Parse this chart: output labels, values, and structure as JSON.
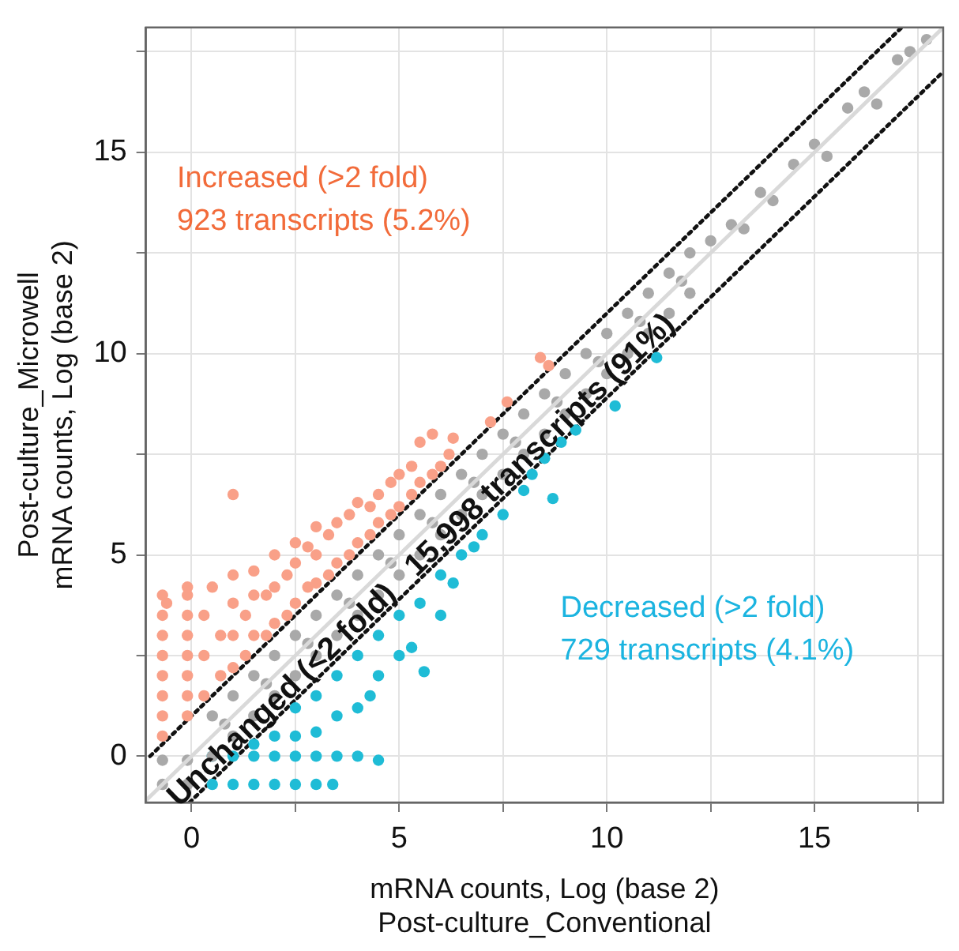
{
  "chart_data": {
    "type": "scatter",
    "xlabel": "mRNA counts, Log (base 2)\nPost-culture_Conventional",
    "ylabel": "Post-culture_Microwell\nmRNA counts, Log (base 2)",
    "xlim": [
      -1.1,
      18.1
    ],
    "ylim": [
      -1.15,
      18.1
    ],
    "xticks": [
      0,
      {
        "value": 2.5,
        "label": null
      },
      5,
      {
        "value": 7.5,
        "label": null
      },
      10,
      {
        "value": 12.5,
        "label": null
      },
      15,
      {
        "value": 17.5,
        "label": null
      }
    ],
    "yticks": [
      0,
      {
        "value": 2.5,
        "label": null
      },
      5,
      {
        "value": 7.5,
        "label": null
      },
      10,
      {
        "value": 12.5,
        "label": null
      },
      15,
      {
        "value": 17.5,
        "label": null
      }
    ],
    "grid": true,
    "legend": false,
    "marker": "circle",
    "annotations": [
      "Increased (>2 fold)\n923 transcripts (5.2%)",
      "Unchanged (<2 fold)   15,998 transcripts (91%)",
      "Decreased (>2 fold)\n729 transcripts (4.1%)"
    ],
    "series": [
      {
        "type": "line",
        "color": "#d9d9d9",
        "line_style": "solid",
        "marker": "none",
        "x": [
          -1.1,
          18.1
        ],
        "values": [
          -1.1,
          18.1
        ]
      },
      {
        "color": "#f9a088",
        "x": [
          -0.7,
          -0.7,
          -0.7,
          -0.7,
          -0.7,
          -0.7,
          -0.7,
          -0.7,
          -0.6,
          -0.1,
          -0.1,
          -0.1,
          -0.1,
          -0.1,
          -0.1,
          -0.1,
          -0.1,
          0.3,
          0.3,
          0.3,
          0.5,
          0.7,
          0.7,
          1,
          1,
          1,
          1,
          1,
          1.3,
          1.3,
          1.5,
          1.5,
          1.5,
          1.8,
          1.8,
          2,
          2,
          2,
          2.3,
          2.3,
          2.5,
          2.5,
          2.5,
          2.8,
          2.8,
          3,
          3,
          3,
          3.3,
          3.3,
          3.5,
          3.5,
          3.8,
          3.8,
          4,
          4,
          4.3,
          4.3,
          4.5,
          4.5,
          4.8,
          4.8,
          5,
          5,
          5.3,
          5.3,
          5.5,
          5.5,
          5.8,
          5.8,
          6,
          6.2,
          6.3,
          7.2,
          7.6,
          8.4,
          8.6
        ],
        "values": [
          0.5,
          1,
          1.5,
          2,
          2.5,
          3,
          3.5,
          4,
          3.8,
          1,
          1.5,
          2,
          2.5,
          3,
          3.5,
          4,
          4.2,
          1.5,
          2.5,
          3.5,
          4.2,
          2,
          3,
          2.2,
          3,
          3.8,
          4.5,
          6.5,
          2.5,
          3.5,
          3,
          4,
          4.6,
          3,
          4,
          3.3,
          4.2,
          5,
          3.5,
          4.5,
          3.8,
          4.8,
          5.3,
          4.2,
          5.2,
          4.3,
          5,
          5.7,
          4.5,
          5.5,
          4.8,
          5.8,
          5,
          6,
          5.3,
          6.3,
          5.5,
          6.2,
          5.8,
          6.5,
          6,
          6.8,
          6.2,
          7,
          6.5,
          7.2,
          6.8,
          7.8,
          7,
          8,
          7.2,
          7.5,
          7.9,
          8.3,
          8.8,
          9.9,
          9.7
        ]
      },
      {
        "color": "#a9a9a9",
        "x": [
          -0.7,
          -0.7,
          -0.1,
          -0.1,
          0.5,
          0.5,
          1,
          1,
          1.5,
          1.5,
          2,
          2,
          2.5,
          2.5,
          3,
          3,
          3.5,
          3.5,
          4,
          4,
          4.5,
          4.5,
          5,
          5,
          5.5,
          5.5,
          6,
          6,
          6.5,
          6.5,
          7,
          7,
          7.5,
          7.5,
          8,
          8,
          8.5,
          8.5,
          9,
          9,
          9.5,
          9.5,
          10,
          10,
          10.5,
          10.5,
          11,
          11,
          11.5,
          11.5,
          12,
          12,
          0.8,
          1.8,
          2.8,
          3.8,
          4.8,
          5.8,
          6.8,
          7.8,
          8.8,
          9.8,
          10.8,
          11.8,
          12.5,
          13,
          13.3,
          13.7,
          14,
          14.5,
          15,
          15.3,
          15.8,
          16.2,
          16.5,
          17,
          17.3,
          17.7
        ],
        "values": [
          -0.7,
          -0.1,
          -0.7,
          -0.1,
          1,
          0,
          1.5,
          0.5,
          2,
          1,
          2.5,
          1.5,
          3,
          2,
          3.5,
          2.5,
          4,
          3,
          4.5,
          3.5,
          5,
          4,
          5.5,
          4.5,
          6,
          5,
          6.5,
          5.5,
          7,
          6,
          7.5,
          6.5,
          8,
          7,
          8.5,
          7.5,
          9,
          8,
          9.5,
          8.5,
          10,
          9,
          10.5,
          9.5,
          11,
          10,
          11.5,
          10.5,
          12,
          11,
          12.5,
          11.5,
          0.8,
          1.8,
          2.8,
          3.8,
          4.8,
          5.8,
          6.8,
          7.8,
          8.8,
          9.8,
          10.8,
          11.8,
          12.8,
          13.2,
          13.1,
          14,
          13.8,
          14.7,
          15.2,
          14.9,
          16.1,
          16.5,
          16.2,
          17.3,
          17.5,
          17.8
        ]
      },
      {
        "color": "#1fbcd6",
        "x": [
          0.5,
          1,
          1.5,
          2,
          2.5,
          3,
          3.5,
          4,
          4.5,
          0.5,
          1,
          1.5,
          2,
          2.5,
          3,
          3.4,
          1.5,
          2,
          2.5,
          2.5,
          3,
          3,
          3.5,
          3.5,
          4,
          4,
          4.3,
          4.5,
          4.5,
          5,
          5,
          5.3,
          5.6,
          5.5,
          6,
          6,
          6.3,
          6.5,
          6.8,
          7,
          7.5,
          8,
          8.2,
          8.5,
          8.7,
          8.9,
          9.25,
          10.2,
          11.2
        ],
        "values": [
          0,
          0,
          0,
          0,
          0,
          0,
          0,
          0,
          -0.1,
          -0.7,
          -0.7,
          -0.7,
          -0.7,
          -0.7,
          -0.7,
          -0.7,
          0.3,
          0.5,
          0.5,
          1.2,
          0.6,
          1.5,
          1,
          2,
          1.2,
          2.5,
          1.5,
          2,
          3,
          2.5,
          3.5,
          2.7,
          2.1,
          3.8,
          3.5,
          4.5,
          4.3,
          5,
          5.2,
          5.5,
          6,
          6.6,
          7,
          7.4,
          6.4,
          7.8,
          8.1,
          8.7,
          9.9
        ]
      },
      {
        "type": "line",
        "color": "#111111",
        "line_style": "dotted",
        "marker": "none",
        "x": [
          -1,
          17.1
        ],
        "values": [
          0,
          18.1
        ]
      },
      {
        "type": "line",
        "color": "#111111",
        "line_style": "dotted",
        "marker": "none",
        "x": [
          -0.05,
          18.1
        ],
        "values": [
          -1.15,
          17
        ]
      }
    ]
  }
}
